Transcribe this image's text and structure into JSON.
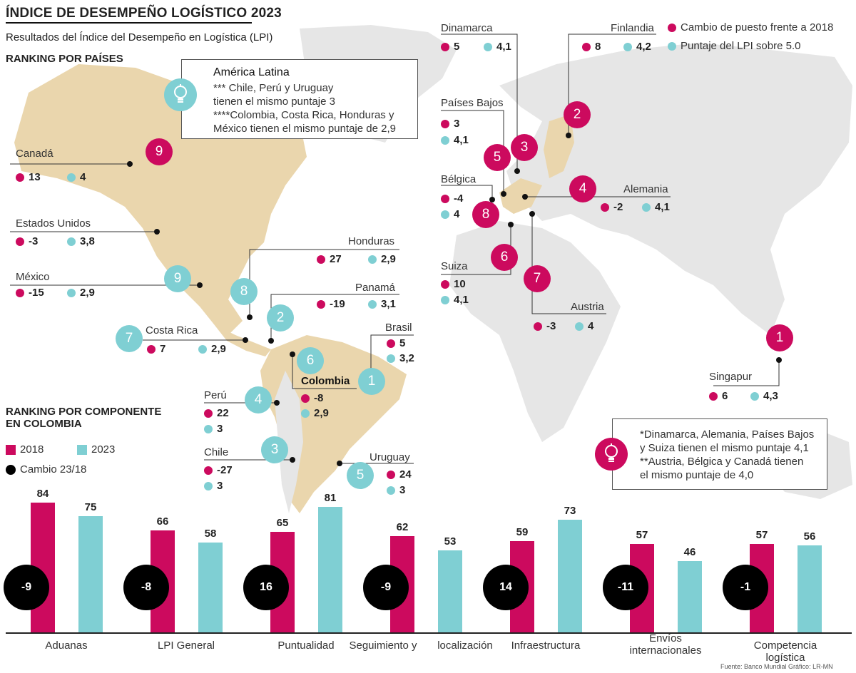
{
  "header": {
    "title": "ÍNDICE DE DESEMPEÑO LOGÍSTICO 2023",
    "subtitle": "Resultados del Índice del Desempeño en Logística (LPI)",
    "ranking_countries": "RANKING POR PAÍSES",
    "ranking_component_1": "RANKING POR COMPONENTE",
    "ranking_component_2": "EN COLOMBIA"
  },
  "legend": {
    "rank_change": "Cambio de puesto frente a 2018",
    "lpi_score": "Puntaje del LPI sobre 5.0",
    "y2018": "2018",
    "y2023": "2023",
    "change": "Cambio 23/18"
  },
  "notes": {
    "latam_title": "América Latina",
    "latam_1": "*** Chile, Perú y Uruguay",
    "latam_2": "tienen el mismo puntaje 3",
    "latam_3": "****Colombia, Costa Rica, Honduras y",
    "latam_4": "México tienen el mismo puntaje de 2,9",
    "eu_1": "*Dinamarca, Alemania, Países Bajos",
    "eu_2": "y Suiza tienen el mismo puntaje 4,1",
    "eu_3": "**Austria, Bélgica y Canadá tienen",
    "eu_4": "el mismo puntaje de 4,0"
  },
  "countries": {
    "canada": {
      "name": "Canadá",
      "change": "13",
      "score": "4",
      "rank": "9"
    },
    "usa": {
      "name": "Estados Unidos",
      "change": "-3",
      "score": "3,8"
    },
    "mexico": {
      "name": "México",
      "change": "-15",
      "score": "2,9",
      "rank": "9"
    },
    "honduras": {
      "name": "Honduras",
      "change": "27",
      "score": "2,9",
      "rank": "8"
    },
    "panama": {
      "name": "Panamá",
      "change": "-19",
      "score": "3,1",
      "rank": "2"
    },
    "costa_rica": {
      "name": "Costa Rica",
      "change": "7",
      "score": "2,9",
      "rank": "7"
    },
    "colombia": {
      "name": "Colombia",
      "change": "-8",
      "score": "2,9",
      "rank": "6"
    },
    "brasil": {
      "name": "Brasil",
      "change": "5",
      "score": "3,2",
      "rank": "1"
    },
    "peru": {
      "name": "Perú",
      "change": "22",
      "score": "3",
      "rank": "4"
    },
    "chile": {
      "name": "Chile",
      "change": "-27",
      "score": "3",
      "rank": "3"
    },
    "uruguay": {
      "name": "Uruguay",
      "change": "24",
      "score": "3",
      "rank": "5"
    },
    "dinamarca": {
      "name": "Dinamarca",
      "change": "5",
      "score": "4,1",
      "rank": "3"
    },
    "finlandia": {
      "name": "Finlandia",
      "change": "8",
      "score": "4,2",
      "rank": "2"
    },
    "paises_bajos": {
      "name": "Países Bajos",
      "change": "3",
      "score": "4,1",
      "rank": "5"
    },
    "belgica": {
      "name": "Bélgica",
      "change": "-4",
      "score": "4",
      "rank": "8"
    },
    "alemania": {
      "name": "Alemania",
      "change": "-2",
      "score": "4,1",
      "rank": "4"
    },
    "suiza": {
      "name": "Suiza",
      "change": "10",
      "score": "4,1",
      "rank": "6"
    },
    "austria": {
      "name": "Austria",
      "change": "-3",
      "score": "4",
      "rank": "7"
    },
    "singapur": {
      "name": "Singapur",
      "change": "6",
      "score": "4,3",
      "rank": "1"
    }
  },
  "chart_data": {
    "type": "bar",
    "categories": [
      "Aduanas",
      "LPI General",
      "Puntualidad",
      "Seguimiento y localización",
      "Infraestructura",
      "Envíos internacionales",
      "Competencia logística"
    ],
    "category_labels": [
      [
        "Aduanas"
      ],
      [
        "LPI General"
      ],
      [
        "Puntualidad"
      ],
      [
        "Seguimiento y",
        "localización"
      ],
      [
        "Infraestructura"
      ],
      [
        "Envíos",
        "internacionales"
      ],
      [
        "Competencia logística"
      ]
    ],
    "series": [
      {
        "name": "2018",
        "values": [
          84,
          66,
          65,
          62,
          59,
          57,
          57
        ],
        "color": "#cc0a5e"
      },
      {
        "name": "2023",
        "values": [
          75,
          58,
          81,
          53,
          73,
          46,
          56
        ],
        "color": "#7fcfd3"
      }
    ],
    "change_labels": [
      "-9",
      "-8",
      "16",
      "-9",
      "14",
      "-11",
      "-1"
    ],
    "ylim": [
      0,
      90
    ]
  },
  "footer": {
    "source": "Fuente: Banco Mundial   Gráfico: LR-MN"
  },
  "colors": {
    "magenta": "#cc0a5e",
    "cyan": "#7fcfd3",
    "land_highlight": "#ead6ad",
    "land": "#e6e6e6"
  }
}
